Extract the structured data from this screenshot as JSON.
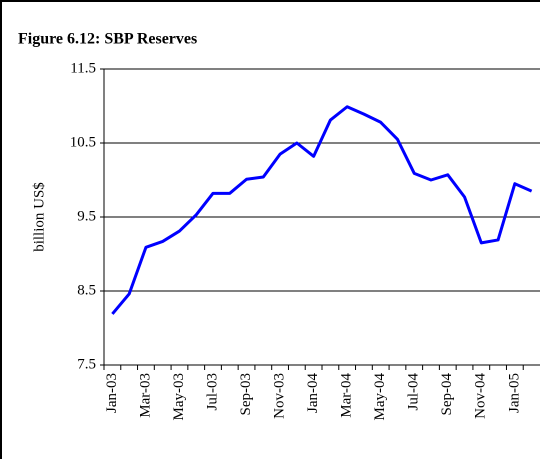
{
  "chart_data": {
    "type": "line",
    "title": "Figure 6.12: SBP Reserves",
    "y_label": "billion US$",
    "categories": [
      "Jan-03",
      null,
      "Mar-03",
      null,
      "May-03",
      null,
      "Jul-03",
      null,
      "Sep-03",
      null,
      "Nov-03",
      null,
      "Jan-04",
      null,
      "Mar-04",
      null,
      "May-04",
      null,
      "Jul-04",
      null,
      "Sep-04",
      null,
      "Nov-04",
      null,
      "Jan-05",
      null
    ],
    "series": [
      {
        "name": "SBP Reserves",
        "color": "#0000ff",
        "values": [
          8.19,
          8.46,
          9.09,
          9.17,
          9.31,
          9.53,
          9.82,
          9.82,
          10.01,
          10.04,
          10.35,
          10.5,
          10.32,
          10.81,
          10.99,
          10.89,
          10.78,
          10.55,
          10.09,
          10.0,
          10.07,
          9.77,
          9.15,
          9.19,
          9.95,
          9.85
        ]
      }
    ],
    "ylim": [
      7.5,
      11.5
    ],
    "yticks": [
      7.5,
      8.5,
      9.5,
      10.5,
      11.5
    ],
    "grid": true
  }
}
